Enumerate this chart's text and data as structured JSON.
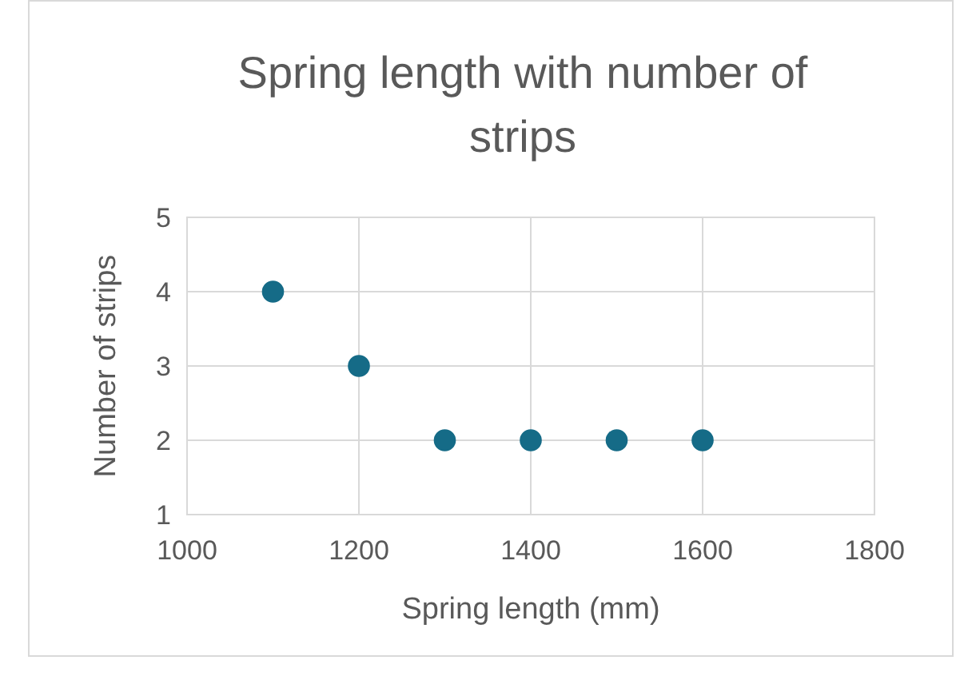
{
  "chart_data": {
    "type": "scatter",
    "title": "Spring length with number of strips",
    "xlabel": "Spring length (mm)",
    "ylabel": "Number of strips",
    "x": [
      1100,
      1200,
      1300,
      1400,
      1500,
      1600
    ],
    "series": [
      {
        "color": "#156b87",
        "values": [
          4,
          3,
          2,
          2,
          2,
          2
        ]
      }
    ],
    "xlim": [
      1000,
      1800
    ],
    "xticks": [
      1000,
      1200,
      1400,
      1600,
      1800
    ],
    "ylim": [
      1,
      5
    ],
    "yticks": [
      1,
      2,
      3,
      4,
      5
    ],
    "grid": true,
    "marker": "circle"
  }
}
